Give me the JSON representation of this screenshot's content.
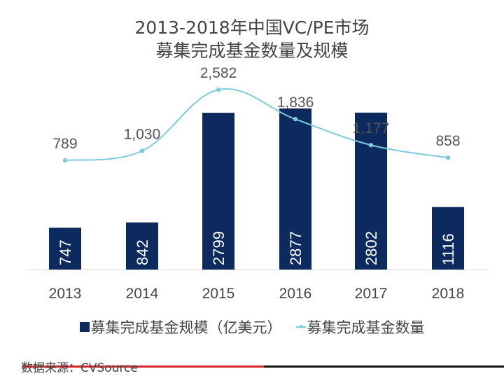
{
  "chart_data": {
    "type": "bar+line",
    "title": [
      "2013-2018年中国VC/PE市场",
      "募集完成基金数量及规模"
    ],
    "categories": [
      "2013",
      "2014",
      "2015",
      "2016",
      "2017",
      "2018"
    ],
    "series": [
      {
        "name": "募集完成基金规模（亿美元）",
        "type": "bar",
        "color": "#0d2a5e",
        "values": [
          747,
          842,
          2799,
          2877,
          2802,
          1116
        ]
      },
      {
        "name": "募集完成基金数量",
        "type": "line",
        "color": "#7fcadb",
        "values": [
          789,
          1030,
          2582,
          1836,
          1177,
          858
        ],
        "labels": [
          "789",
          "1,030",
          "2,582",
          "1,836",
          "1,177",
          "858"
        ]
      }
    ],
    "legend_position": "bottom",
    "grid": false
  },
  "legend": {
    "bar_label": "募集完成基金规模（亿美元）",
    "line_label": "募集完成基金数量"
  },
  "source": "数据来源：CVSource"
}
